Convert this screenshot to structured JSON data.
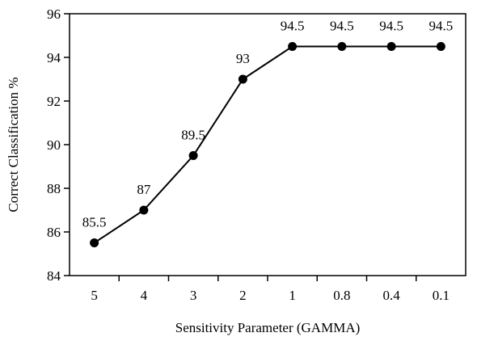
{
  "chart_data": {
    "type": "line",
    "title": "",
    "xlabel": "Sensitivity Parameter (GAMMA)",
    "ylabel": "Correct Classification %",
    "categories": [
      "5",
      "4",
      "3",
      "2",
      "1",
      "0.8",
      "0.4",
      "0.1"
    ],
    "series": [
      {
        "values": [
          85.5,
          87,
          89.5,
          93,
          94.5,
          94.5,
          94.5,
          94.5
        ],
        "data_labels": [
          "85.5",
          "87",
          "89.5",
          "93",
          "94.5",
          "94.5",
          "94.5",
          "94.5"
        ],
        "color": "#000000",
        "marker": "circle"
      }
    ],
    "ylim": [
      84,
      96
    ],
    "yticks": [
      84,
      86,
      88,
      90,
      92,
      94,
      96
    ],
    "grid": false,
    "legend": "none"
  }
}
